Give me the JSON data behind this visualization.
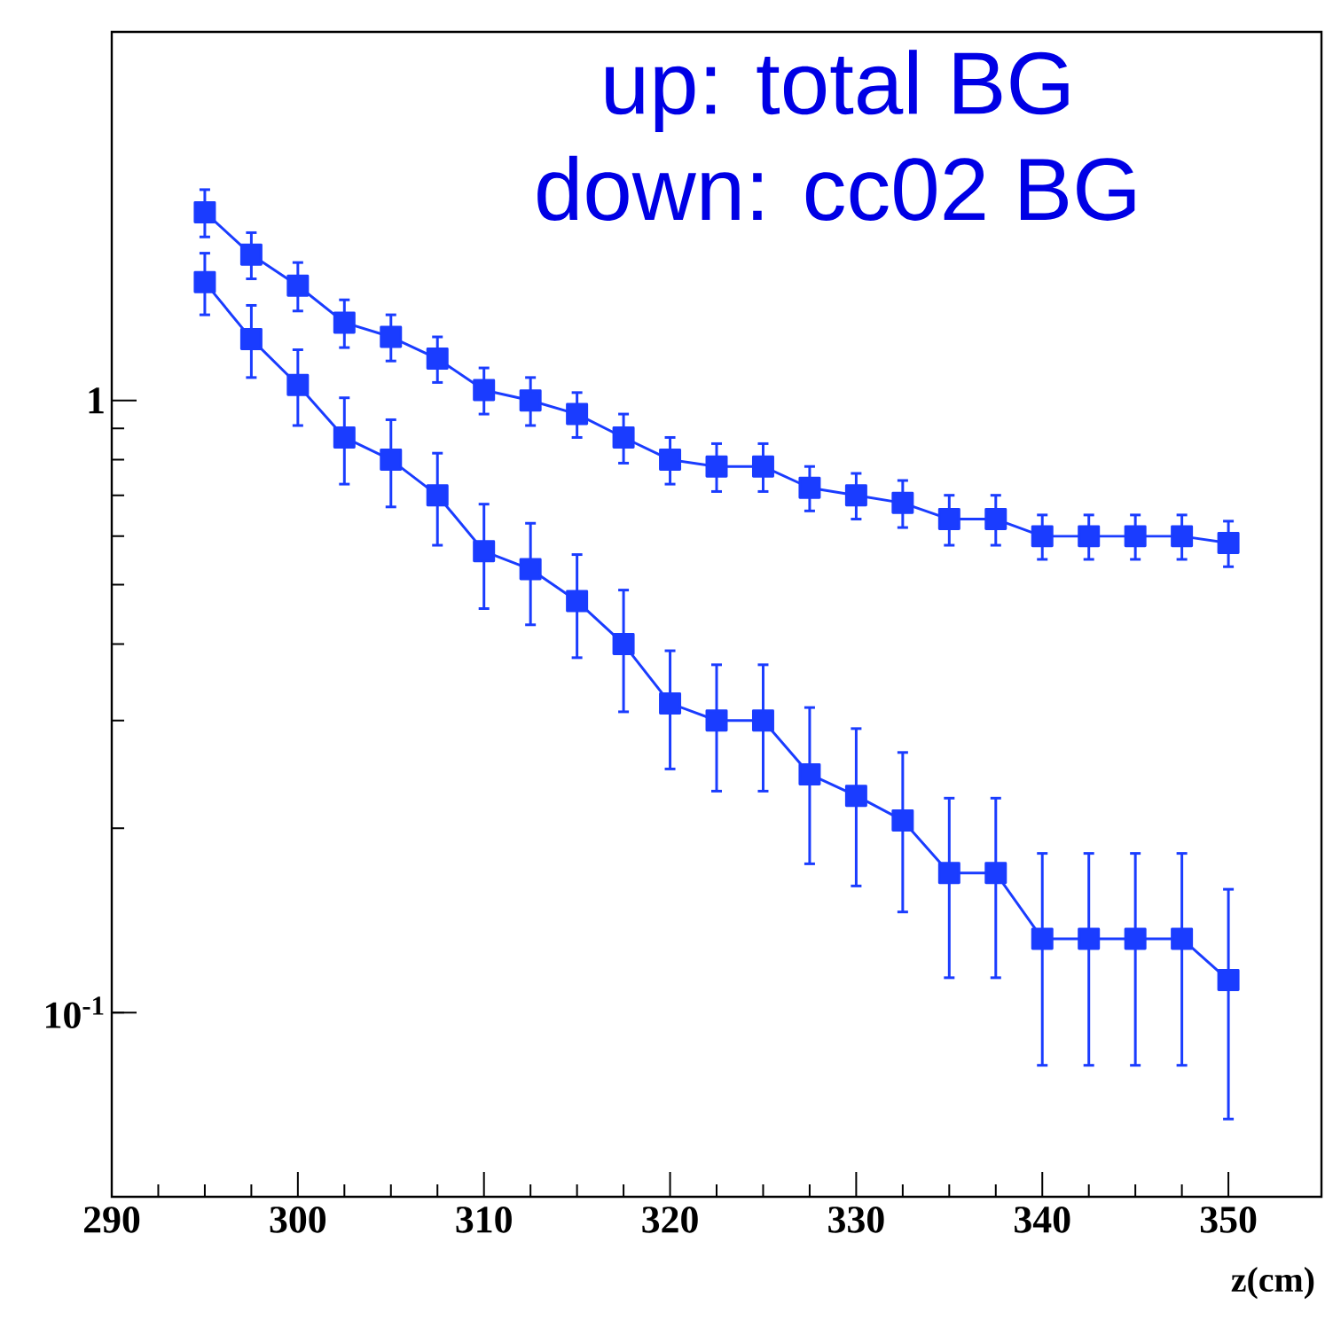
{
  "chart_data": {
    "type": "line",
    "annotations": [
      "up: total BG",
      "down: cc02 BG"
    ],
    "xlabel": "z(cm)",
    "x": [
      295,
      297.5,
      300,
      302.5,
      305,
      307.5,
      310,
      312.5,
      315,
      317.5,
      320,
      322.5,
      325,
      327.5,
      330,
      332.5,
      335,
      337.5,
      340,
      342.5,
      345,
      347.5,
      350
    ],
    "series": [
      {
        "color": "#1a3cff",
        "values": [
          2.03,
          1.73,
          1.54,
          1.34,
          1.27,
          1.17,
          1.04,
          1.0,
          0.95,
          0.87,
          0.8,
          0.78,
          0.78,
          0.72,
          0.7,
          0.68,
          0.64,
          0.64,
          0.6,
          0.6,
          0.6,
          0.6,
          0.585
        ],
        "errors": [
          0.18,
          0.15,
          0.14,
          0.12,
          0.11,
          0.1,
          0.09,
          0.09,
          0.08,
          0.08,
          0.07,
          0.07,
          0.07,
          0.06,
          0.06,
          0.06,
          0.06,
          0.06,
          0.05,
          0.05,
          0.05,
          0.05,
          0.05
        ]
      },
      {
        "color": "#1a3cff",
        "values": [
          1.56,
          1.26,
          1.06,
          0.87,
          0.8,
          0.7,
          0.567,
          0.53,
          0.47,
          0.4,
          0.32,
          0.3,
          0.3,
          0.245,
          0.226,
          0.206,
          0.169,
          0.169,
          0.132,
          0.132,
          0.132,
          0.132,
          0.113
        ],
        "errors": [
          0.18,
          0.17,
          0.15,
          0.14,
          0.13,
          0.12,
          0.11,
          0.1,
          0.09,
          0.09,
          0.07,
          0.07,
          0.07,
          0.07,
          0.065,
          0.06,
          0.055,
          0.055,
          0.05,
          0.05,
          0.05,
          0.05,
          0.046
        ]
      }
    ],
    "xlim": [
      290,
      355
    ],
    "ylim": [
      0.05,
      4
    ],
    "xticks": [
      290,
      300,
      310,
      320,
      330,
      340,
      350
    ],
    "yticks": [
      {
        "value": 0.1,
        "label": "10$^{-1}$"
      },
      {
        "value": 1,
        "label": "1"
      }
    ],
    "log": "y",
    "marker": "square",
    "line_style": "solid"
  }
}
